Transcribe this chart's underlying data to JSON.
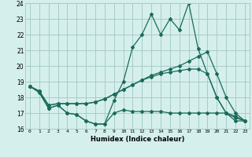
{
  "title": "",
  "xlabel": "Humidex (Indice chaleur)",
  "ylabel": "",
  "background_color": "#d5efec",
  "grid_color": "#a8ccc9",
  "line_color": "#1a6b5a",
  "x_values": [
    0,
    1,
    2,
    3,
    4,
    5,
    6,
    7,
    8,
    9,
    10,
    11,
    12,
    13,
    14,
    15,
    16,
    17,
    18,
    19,
    20,
    21,
    22,
    23
  ],
  "line_main": [
    18.7,
    18.4,
    17.3,
    17.5,
    17.0,
    16.9,
    16.5,
    16.3,
    16.3,
    17.8,
    19.0,
    21.2,
    22.0,
    23.3,
    22.0,
    23.0,
    22.3,
    24.0,
    21.1,
    19.5,
    18.0,
    17.0,
    16.5,
    16.5
  ],
  "line_trend1": [
    18.7,
    18.4,
    17.5,
    17.6,
    17.6,
    17.6,
    17.6,
    17.7,
    17.9,
    18.2,
    18.5,
    18.8,
    19.1,
    19.4,
    19.6,
    19.8,
    20.0,
    20.3,
    20.6,
    20.9,
    19.5,
    18.0,
    17.0,
    16.5
  ],
  "line_trend2": [
    18.7,
    18.4,
    17.5,
    17.6,
    17.6,
    17.6,
    17.6,
    17.7,
    17.9,
    18.2,
    18.5,
    18.8,
    19.1,
    19.3,
    19.5,
    19.6,
    19.7,
    19.8,
    19.8,
    19.5,
    18.0,
    17.0,
    16.8,
    16.5
  ],
  "line_min": [
    18.7,
    18.3,
    17.3,
    17.5,
    17.0,
    16.9,
    16.5,
    16.3,
    16.3,
    17.0,
    17.2,
    17.1,
    17.1,
    17.1,
    17.1,
    17.0,
    17.0,
    17.0,
    17.0,
    17.0,
    17.0,
    17.0,
    16.7,
    16.5
  ],
  "ylim": [
    16,
    24
  ],
  "xlim": [
    -0.5,
    23.5
  ],
  "xtick_labels": [
    "0",
    "1",
    "2",
    "3",
    "4",
    "5",
    "6",
    "7",
    "8",
    "9",
    "10",
    "11",
    "12",
    "13",
    "14",
    "15",
    "16",
    "17",
    "18",
    "19",
    "20",
    "21",
    "22",
    "23"
  ],
  "ytick_labels": [
    "16",
    "17",
    "18",
    "19",
    "20",
    "21",
    "22",
    "23",
    "24"
  ]
}
